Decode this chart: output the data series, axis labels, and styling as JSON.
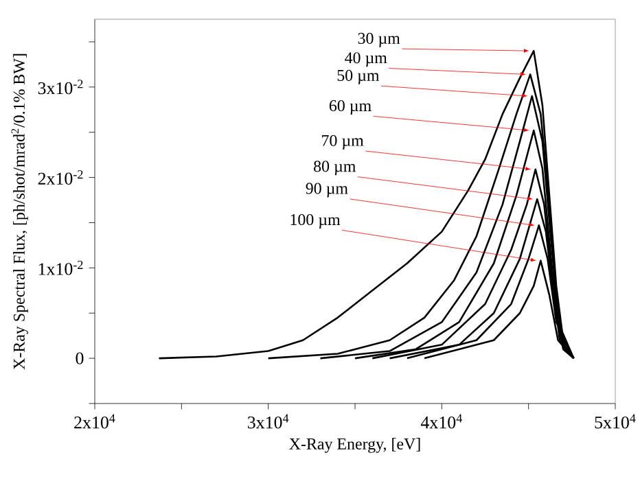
{
  "chart_data": {
    "type": "line",
    "xlabel": "X-Ray Energy, [eV]",
    "ylabel": "X-Ray Spectral Flux, [ph/shot/mrad$^{2}$/0.1% BW]",
    "xlim": [
      20000,
      50000
    ],
    "ylim": [
      -0.005,
      0.0375
    ],
    "xticks": [
      {
        "value": 20000,
        "label": "2x10$^{4}$"
      },
      {
        "value": 25000,
        "label": null
      },
      {
        "value": 30000,
        "label": "3x10$^{4}$"
      },
      {
        "value": 35000,
        "label": null
      },
      {
        "value": 40000,
        "label": "4x10$^{4}$"
      },
      {
        "value": 45000,
        "label": null
      },
      {
        "value": 50000,
        "label": "5x10$^{4}$"
      }
    ],
    "yticks": [
      {
        "value": -0.005,
        "label": null
      },
      {
        "value": 0,
        "label": "0"
      },
      {
        "value": 0.005,
        "label": null
      },
      {
        "value": 0.01,
        "label": "1x10$^{-2}$"
      },
      {
        "value": 0.015,
        "label": null
      },
      {
        "value": 0.02,
        "label": "2x10$^{-2}$"
      },
      {
        "value": 0.025,
        "label": null
      },
      {
        "value": 0.03,
        "label": "3x10$^{-2}$"
      },
      {
        "value": 0.035,
        "label": null
      }
    ],
    "grid": false,
    "legend": false,
    "marker": "none",
    "line_style": "solid",
    "series": [
      {
        "name": "30 µm",
        "color": "#000000",
        "x": [
          23700,
          27000,
          30000,
          32000,
          34000,
          36000,
          38000,
          40000,
          41500,
          42500,
          43500,
          44500,
          45300,
          45800,
          46200,
          46600,
          47000,
          47600
        ],
        "values": [
          0,
          0.0002,
          0.0008,
          0.002,
          0.0045,
          0.0075,
          0.0105,
          0.014,
          0.0185,
          0.022,
          0.027,
          0.031,
          0.034,
          0.028,
          0.018,
          0.008,
          0.002,
          0
        ]
      },
      {
        "name": "40 µm",
        "color": "#000000",
        "x": [
          30000,
          34000,
          37000,
          39000,
          40700,
          42000,
          43300,
          44300,
          45100,
          45700,
          46200,
          46600,
          47000,
          47600
        ],
        "values": [
          0,
          0.0005,
          0.002,
          0.0045,
          0.0086,
          0.0135,
          0.021,
          0.027,
          0.0314,
          0.027,
          0.017,
          0.007,
          0.0015,
          0
        ]
      },
      {
        "name": "50 µm",
        "color": "#000000",
        "x": [
          33000,
          37000,
          40000,
          42000,
          43500,
          44500,
          45200,
          45800,
          46300,
          46700,
          47100,
          47600
        ],
        "values": [
          0,
          0.0008,
          0.004,
          0.0095,
          0.017,
          0.024,
          0.029,
          0.024,
          0.013,
          0.005,
          0.001,
          0
        ]
      },
      {
        "name": "60 µm",
        "color": "#000000",
        "x": [
          35000,
          38500,
          41000,
          43000,
          44300,
          45300,
          45800,
          46300,
          46700,
          47600
        ],
        "values": [
          0,
          0.001,
          0.004,
          0.0105,
          0.018,
          0.0252,
          0.021,
          0.011,
          0.004,
          0
        ]
      },
      {
        "name": "70 µm",
        "color": "#000000",
        "x": [
          36000,
          40000,
          42500,
          44000,
          44900,
          45400,
          45900,
          46400,
          46800,
          47600
        ],
        "values": [
          0,
          0.0015,
          0.006,
          0.012,
          0.017,
          0.0209,
          0.017,
          0.008,
          0.002,
          0
        ]
      },
      {
        "name": "80 µm",
        "color": "#000000",
        "x": [
          37000,
          41000,
          43000,
          44500,
          45500,
          46000,
          46500,
          47000,
          47600
        ],
        "values": [
          0,
          0.0015,
          0.005,
          0.011,
          0.0176,
          0.014,
          0.006,
          0.001,
          0
        ]
      },
      {
        "name": "90 µm",
        "color": "#000000",
        "x": [
          38000,
          42000,
          44000,
          45000,
          45600,
          46100,
          46600,
          47600
        ],
        "values": [
          0,
          0.002,
          0.006,
          0.011,
          0.0147,
          0.011,
          0.004,
          0
        ]
      },
      {
        "name": "100 µm",
        "color": "#000000",
        "x": [
          39000,
          43000,
          44500,
          45300,
          45700,
          46200,
          46700,
          47600
        ],
        "values": [
          0,
          0.002,
          0.005,
          0.008,
          0.0108,
          0.007,
          0.002,
          0
        ]
      }
    ]
  }
}
